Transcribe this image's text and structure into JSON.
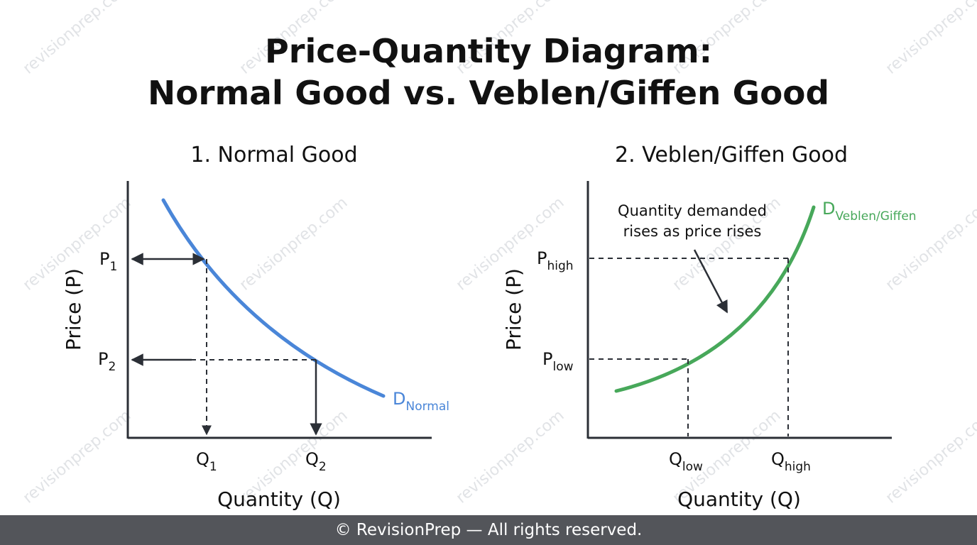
{
  "watermark": "revisionprep.com",
  "title_line1": "Price-Quantity Diagram:",
  "title_line2": "Normal Good vs. Veblen/Giffen Good",
  "footer": "© RevisionPrep — All rights reserved.",
  "colors": {
    "normal_curve": "#4a86d8",
    "veblen_curve": "#47a85a",
    "axes": "#2b2f36",
    "footer_bg": "#53555a"
  },
  "panels": {
    "normal": {
      "title": "1. Normal Good",
      "ylabel": "Price (P)",
      "xlabel": "Quantity (Q)",
      "p1": "P",
      "p1_sub": "1",
      "p2": "P",
      "p2_sub": "2",
      "q1": "Q",
      "q1_sub": "1",
      "q2": "Q",
      "q2_sub": "2",
      "curve_label": "D",
      "curve_label_sub": "Normal"
    },
    "veblen": {
      "title": "2. Veblen/Giffen Good",
      "ylabel": "Price (P)",
      "xlabel": "Quantity (Q)",
      "phigh": "P",
      "phigh_sub": "high",
      "plow": "P",
      "plow_sub": "low",
      "qlow": "Q",
      "qlow_sub": "low",
      "qhigh": "Q",
      "qhigh_sub": "high",
      "curve_label": "D",
      "curve_label_sub": "Veblen/Giffen",
      "annotation_line1": "Quantity demanded",
      "annotation_line2": "rises as price rises"
    }
  }
}
